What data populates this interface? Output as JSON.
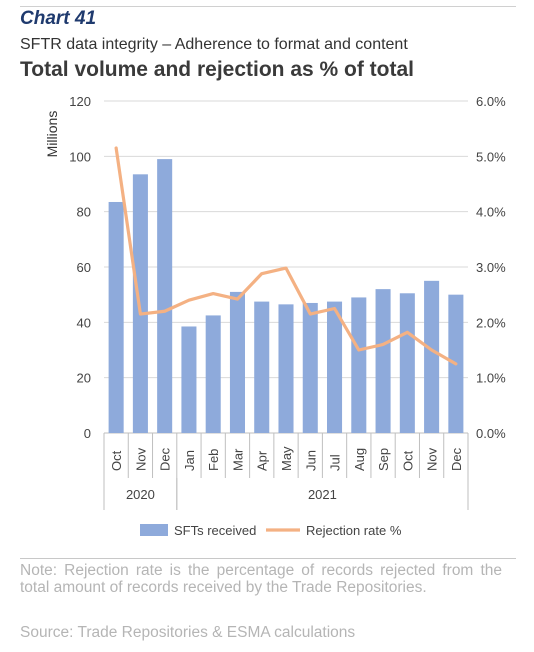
{
  "header": {
    "chart_number": "Chart 41",
    "subtitle": "SFTR data integrity – Adherence to format and content",
    "title": "Total volume and rejection as % of total"
  },
  "chart_data": {
    "type": "bar",
    "categories": [
      "Oct",
      "Nov",
      "Dec",
      "Jan",
      "Feb",
      "Mar",
      "Apr",
      "May",
      "Jun",
      "Jul",
      "Aug",
      "Sep",
      "Oct",
      "Nov",
      "Dec"
    ],
    "year_groups": [
      {
        "label": "2020",
        "start": 0,
        "end": 2
      },
      {
        "label": "2021",
        "start": 3,
        "end": 14
      }
    ],
    "series": [
      {
        "name": "SFTs received",
        "type": "bar",
        "axis": "left",
        "color": "#8eaadb",
        "values": [
          83.5,
          93.5,
          99,
          38.5,
          42.5,
          51,
          47.5,
          46.5,
          47,
          47.5,
          49,
          52,
          50.5,
          55,
          50
        ]
      },
      {
        "name": "Rejection rate %",
        "type": "line",
        "axis": "right",
        "color": "#f4b183",
        "values": [
          5.15,
          2.15,
          2.2,
          2.4,
          2.52,
          2.42,
          2.88,
          2.98,
          2.15,
          2.25,
          1.5,
          1.6,
          1.82,
          1.5,
          1.25
        ]
      }
    ],
    "ylabel": "Millions",
    "ylim": [
      0,
      120
    ],
    "yticks": [
      "0",
      "20",
      "40",
      "60",
      "80",
      "100",
      "120"
    ],
    "y2lim": [
      0,
      6
    ],
    "y2ticks": [
      "0.0%",
      "1.0%",
      "2.0%",
      "3.0%",
      "4.0%",
      "5.0%",
      "6.0%"
    ],
    "grid": true,
    "legend_position": "bottom"
  },
  "footer": {
    "note": "Note: Rejection rate is the percentage of records rejected from the total amount of records received by the Trade Repositories.",
    "source": "Source: Trade Repositories & ESMA calculations"
  }
}
